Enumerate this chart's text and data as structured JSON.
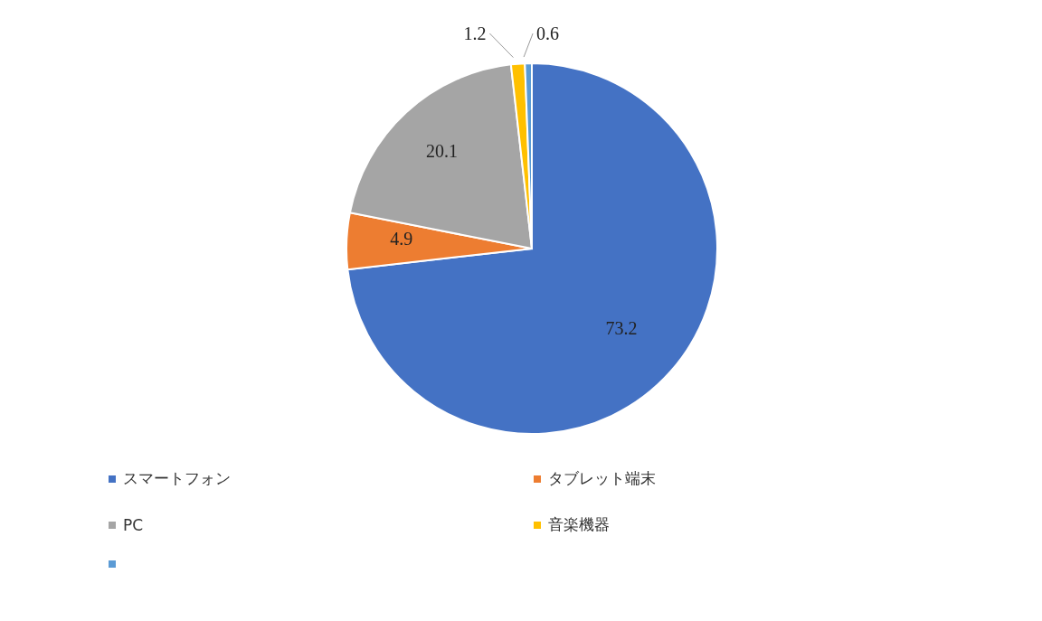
{
  "chart_data": {
    "type": "pie",
    "categories": [
      "スマートフォン",
      "タブレット端末",
      "PC",
      "音楽機器",
      null
    ],
    "values": [
      73.2,
      4.9,
      20.1,
      1.2,
      0.6
    ],
    "colors": [
      "#4472c4",
      "#ed7d31",
      "#a5a5a5",
      "#ffc000",
      "#5b9bd5"
    ],
    "data_labels": true,
    "legend": "bottom"
  }
}
